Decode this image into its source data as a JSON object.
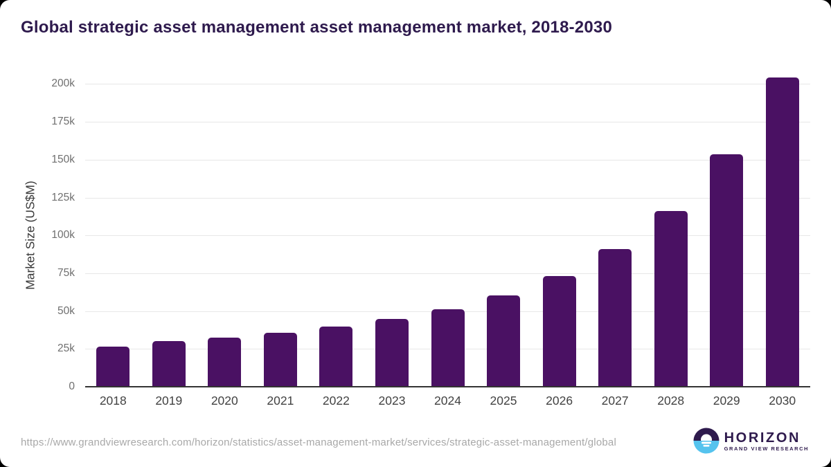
{
  "title": "Global strategic asset management asset management market, 2018-2030",
  "footer": {
    "source_url": "https://www.grandviewresearch.com/horizon/statistics/asset-management-market/services/strategic-asset-management/global"
  },
  "logo": {
    "icon": "horizon-sun-over-water-icon",
    "name": "HORIZON",
    "subtitle": "GRAND VIEW RESEARCH"
  },
  "colors": {
    "bar": "#4a1163",
    "title_text": "#2e1a4d",
    "grid": "#e7e7e7",
    "axis_line": "#333333",
    "ytick_text": "#6f6f6f",
    "xtick_text": "#424242",
    "url_text": "#a8a8a8",
    "logo_purple": "#2e1a4d",
    "logo_blue": "#55c3ee",
    "background": "#ffffff"
  },
  "chart_data": {
    "type": "bar",
    "title": "Global strategic asset management asset management market, 2018-2030",
    "xlabel": "",
    "ylabel": "Market Size (US$M)",
    "categories": [
      "2018",
      "2019",
      "2020",
      "2021",
      "2022",
      "2023",
      "2024",
      "2025",
      "2026",
      "2027",
      "2028",
      "2029",
      "2030"
    ],
    "values": [
      26500,
      30000,
      32500,
      35500,
      39900,
      44900,
      51100,
      60400,
      73000,
      91000,
      116000,
      153500,
      204500
    ],
    "ylim": [
      0,
      212500
    ],
    "yticks": [
      0,
      25000,
      50000,
      75000,
      100000,
      125000,
      150000,
      175000,
      200000
    ],
    "ytick_labels": [
      "0",
      "25k",
      "50k",
      "75k",
      "100k",
      "125k",
      "150k",
      "175k",
      "200k"
    ],
    "grid": "horizontal",
    "legend": "none",
    "bar_color": "#4a1163"
  }
}
